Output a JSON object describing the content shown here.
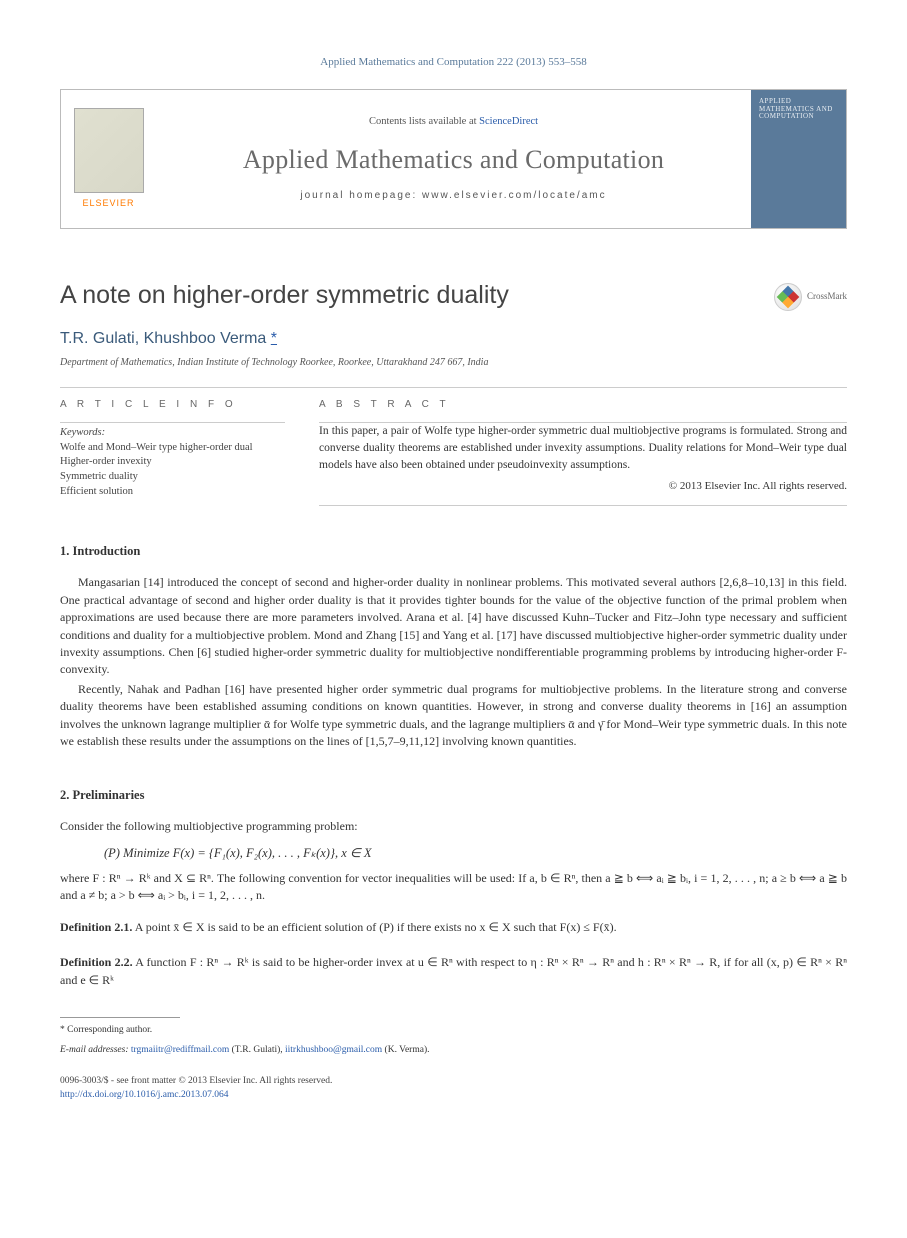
{
  "header_citation": "Applied Mathematics and Computation 222 (2013) 553–558",
  "masthead": {
    "publisher": "ELSEVIER",
    "contents_prefix": "Contents lists available at ",
    "contents_link": "ScienceDirect",
    "journal_name": "Applied Mathematics and Computation",
    "homepage_label": "journal homepage: www.elsevier.com/locate/amc",
    "cover_label": "APPLIED MATHEMATICS AND COMPUTATION"
  },
  "crossmark_label": "CrossMark",
  "title": "A note on higher-order symmetric duality",
  "authors": "T.R. Gulati, Khushboo Verma",
  "corr_marker": "*",
  "affiliation": "Department of Mathematics, Indian Institute of Technology Roorkee, Roorkee, Uttarakhand 247 667, India",
  "article_info_label": "A R T I C L E   I N F O",
  "abstract_label": "A B S T R A C T",
  "keywords_head": "Keywords:",
  "keywords": "Wolfe and Mond–Weir type higher-order dual\nHigher-order invexity\nSymmetric duality\nEfficient solution",
  "abstract_text": "In this paper, a pair of Wolfe type higher-order symmetric dual multiobjective programs is formulated. Strong and converse duality theorems are established under invexity assumptions. Duality relations for Mond–Weir type dual models have also been obtained under pseudoinvexity assumptions.",
  "copyright": "© 2013 Elsevier Inc. All rights reserved.",
  "sections": {
    "intro_head": "1. Introduction",
    "intro_p1": "Mangasarian [14] introduced the concept of second and higher-order duality in nonlinear problems. This motivated several authors [2,6,8–10,13] in this field. One practical advantage of second and higher order duality is that it provides tighter bounds for the value of the objective function of the primal problem when approximations are used because there are more parameters involved. Arana et al. [4] have discussed Kuhn–Tucker and Fitz–John type necessary and sufficient conditions and duality for a multiobjective problem. Mond and Zhang [15] and Yang et al. [17] have discussed multiobjective higher-order symmetric duality under invexity assumptions. Chen [6] studied higher-order symmetric duality for multiobjective nondifferentiable programming problems by introducing higher-order F-convexity.",
    "intro_p2": "Recently, Nahak and Padhan [16] have presented higher order symmetric dual programs for multiobjective problems. In the literature strong and converse duality theorems have been established assuming conditions on known quantities. However, in strong and converse duality theorems in [16] an assumption involves the unknown lagrange multiplier ᾱ for Wolfe type symmetric duals, and the lagrange multipliers ᾱ and γ̄ for Mond–Weir type symmetric duals. In this note we establish these results under the assumptions on the lines of [1,5,7–9,11,12] involving known quantities.",
    "prelim_head": "2. Preliminaries",
    "prelim_intro": "Consider the following multiobjective programming problem:",
    "prelim_formula": "(P)    Minimize F(x)  =  {F₁(x), F₂(x), . . . , Fₖ(x)},    x ∈ X",
    "prelim_where": "where  F : Rⁿ → Rᵏ  and  X ⊆ Rⁿ.  The following convention for vector inequalities will be used: If  a, b ∈ Rⁿ,  then a ≧ b ⟺ aᵢ ≧ bᵢ, i = 1, 2, . . . , n; a ≥ b ⟺ a ≧ b and a ≠ b; a > b ⟺ aᵢ > bᵢ, i = 1, 2, . . . , n.",
    "def21": "Definition 2.1.  A point x̄ ∈ X is said to be an efficient solution of (P) if there exists no x ∈ X such that F(x) ≤ F(x̄).",
    "def22": "Definition 2.2.  A function F : Rⁿ → Rᵏ is said to be higher-order invex at u ∈ Rⁿ with respect to η : Rⁿ × Rⁿ → Rⁿ and h : Rⁿ × Rⁿ → R, if for all (x, p) ∈ Rⁿ × Rⁿ and e ∈ Rᵏ"
  },
  "footnotes": {
    "corr": "* Corresponding author.",
    "email_label": "E-mail addresses: ",
    "email1": "trgmaiitr@rediffmail.com",
    "email1_who": " (T.R. Gulati), ",
    "email2": "iitrkhushboo@gmail.com",
    "email2_who": " (K. Verma)."
  },
  "bottom": {
    "line1": "0096-3003/$ - see front matter © 2013 Elsevier Inc. All rights reserved.",
    "doi": "http://dx.doi.org/10.1016/j.amc.2013.07.064"
  },
  "colors": {
    "link": "#2a5caa",
    "header_blue": "#5a7a9a",
    "elsevier_orange": "#ff7a00",
    "text": "#333333",
    "border": "#cccccc"
  }
}
